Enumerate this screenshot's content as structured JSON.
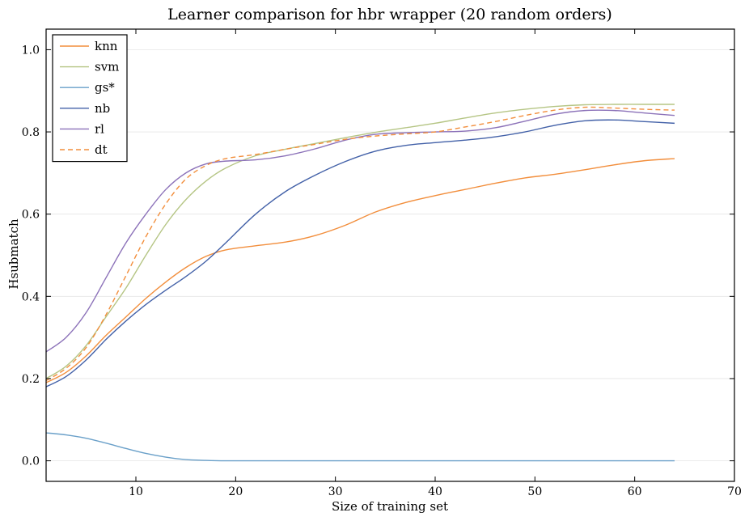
{
  "chart_data": {
    "type": "line",
    "title": "Learner comparison for hbr wrapper (20 random orders)",
    "xlabel": "Size of training set",
    "ylabel": "Hsubmatch",
    "xlim": [
      1,
      70
    ],
    "ylim": [
      -0.05,
      1.05
    ],
    "xticks": [
      "10",
      "20",
      "30",
      "40",
      "50",
      "60",
      "70"
    ],
    "yticks": [
      "0.0",
      "0.2",
      "0.4",
      "0.6",
      "0.8",
      "1.0"
    ],
    "grid": "horizontal",
    "legend_position": "top-left",
    "x": [
      1,
      3,
      5,
      7,
      9,
      11,
      13,
      15,
      17,
      19,
      22,
      25,
      28,
      31,
      34,
      37,
      40,
      43,
      46,
      49,
      52,
      55,
      58,
      61,
      64
    ],
    "series": [
      {
        "name": "knn",
        "color": "#f28e3c",
        "style": "solid",
        "values": [
          0.19,
          0.215,
          0.255,
          0.305,
          0.35,
          0.395,
          0.435,
          0.47,
          0.497,
          0.513,
          0.523,
          0.532,
          0.548,
          0.573,
          0.605,
          0.628,
          0.645,
          0.66,
          0.675,
          0.688,
          0.697,
          0.708,
          0.72,
          0.73,
          0.735
        ]
      },
      {
        "name": "svm",
        "color": "#b5c584",
        "style": "solid",
        "values": [
          0.2,
          0.23,
          0.28,
          0.35,
          0.42,
          0.5,
          0.575,
          0.635,
          0.68,
          0.712,
          0.742,
          0.758,
          0.772,
          0.786,
          0.799,
          0.81,
          0.821,
          0.834,
          0.846,
          0.855,
          0.862,
          0.866,
          0.867,
          0.867,
          0.867
        ]
      },
      {
        "name": "gs*",
        "color": "#6aa0c9",
        "style": "solid",
        "values": [
          0.068,
          0.063,
          0.055,
          0.043,
          0.03,
          0.018,
          0.009,
          0.003,
          0.001,
          0.0,
          0.0,
          0.0,
          0.0,
          0.0,
          0.0,
          0.0,
          0.0,
          0.0,
          0.0,
          0.0,
          0.0,
          0.0,
          0.0,
          0.0,
          0.0
        ]
      },
      {
        "name": "nb",
        "color": "#4361a8",
        "style": "solid",
        "values": [
          0.18,
          0.205,
          0.245,
          0.295,
          0.34,
          0.38,
          0.415,
          0.448,
          0.485,
          0.53,
          0.6,
          0.655,
          0.695,
          0.728,
          0.753,
          0.767,
          0.774,
          0.78,
          0.788,
          0.8,
          0.816,
          0.827,
          0.829,
          0.825,
          0.821
        ]
      },
      {
        "name": "rl",
        "color": "#8c72b9",
        "style": "solid",
        "values": [
          0.265,
          0.3,
          0.36,
          0.445,
          0.53,
          0.6,
          0.66,
          0.7,
          0.722,
          0.729,
          0.732,
          0.742,
          0.759,
          0.78,
          0.794,
          0.798,
          0.8,
          0.802,
          0.81,
          0.826,
          0.843,
          0.852,
          0.852,
          0.846,
          0.84
        ]
      },
      {
        "name": "dt",
        "color": "#f28e3c",
        "style": "dashed",
        "values": [
          0.195,
          0.225,
          0.275,
          0.355,
          0.45,
          0.545,
          0.625,
          0.685,
          0.718,
          0.735,
          0.745,
          0.758,
          0.77,
          0.782,
          0.79,
          0.795,
          0.8,
          0.812,
          0.825,
          0.84,
          0.853,
          0.86,
          0.858,
          0.855,
          0.853
        ]
      }
    ]
  }
}
